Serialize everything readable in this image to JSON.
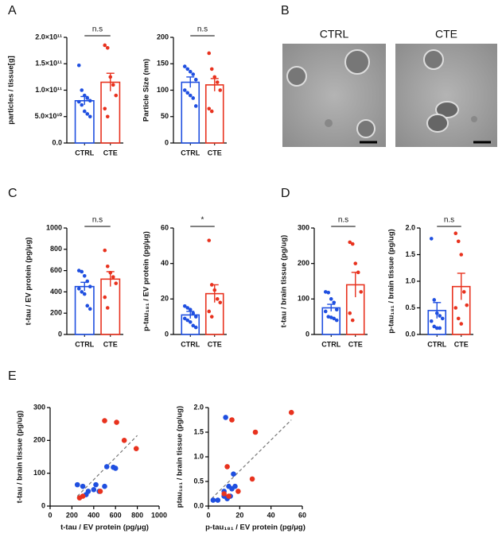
{
  "panel_labels": [
    "A",
    "B",
    "C",
    "D",
    "E"
  ],
  "images": {
    "labels": [
      "CTRL",
      "CTE"
    ]
  },
  "chart_data": [
    {
      "type": "bar",
      "ylabel": "particles / tissue[g]",
      "categories": [
        "CTRL",
        "CTE"
      ],
      "colors": [
        "#1f4fe0",
        "#e8321e"
      ],
      "values": [
        80000000000,
        115000000000
      ],
      "errors": [
        8000000000,
        17000000000
      ],
      "points": [
        [
          147000000000,
          100000000000,
          90000000000,
          85000000000,
          80000000000,
          78000000000,
          72000000000,
          60000000000,
          55000000000,
          50000000000
        ],
        [
          185000000000,
          180000000000,
          125000000000,
          110000000000,
          90000000000,
          65000000000,
          50000000000
        ]
      ],
      "annotation": "n.s",
      "ylim": [
        0,
        200000000000
      ],
      "yticks": [
        {
          "value": 0,
          "label": "0.0"
        },
        {
          "value": 50000000000,
          "label": "5.0×10¹⁰"
        },
        {
          "value": 100000000000,
          "label": "1.0×10¹¹"
        },
        {
          "value": 150000000000,
          "label": "1.5×10¹¹"
        },
        {
          "value": 200000000000,
          "label": "2.0×10¹¹"
        }
      ]
    },
    {
      "type": "bar",
      "ylabel": "Particle Size (nm)",
      "categories": [
        "CTRL",
        "CTE"
      ],
      "colors": [
        "#1f4fe0",
        "#e8321e"
      ],
      "values": [
        115,
        110
      ],
      "errors": [
        10,
        12
      ],
      "points": [
        [
          145,
          140,
          135,
          130,
          120,
          100,
          95,
          90,
          85,
          70
        ],
        [
          170,
          140,
          125,
          115,
          100,
          65,
          60
        ]
      ],
      "annotation": "n.s",
      "ylim": [
        0,
        200
      ],
      "yticks": [
        0,
        50,
        100,
        150,
        200
      ]
    },
    {
      "type": "bar",
      "ylabel": "t-tau / EV protein (pg/μg)",
      "categories": [
        "CTRL",
        "CTE"
      ],
      "colors": [
        "#1f4fe0",
        "#e8321e"
      ],
      "values": [
        450,
        520
      ],
      "errors": [
        40,
        70
      ],
      "points": [
        [
          600,
          590,
          550,
          500,
          450,
          430,
          400,
          380,
          270,
          240
        ],
        [
          790,
          640,
          580,
          540,
          480,
          350,
          250
        ]
      ],
      "annotation": "n.s",
      "ylim": [
        0,
        1000
      ],
      "yticks": [
        0,
        200,
        400,
        600,
        800,
        1000
      ]
    },
    {
      "type": "bar",
      "ylabel": "p-tau₁₈₁ / EV protein (pg/μg)",
      "categories": [
        "CTRL",
        "CTE"
      ],
      "colors": [
        "#1f4fe0",
        "#e8321e"
      ],
      "values": [
        11,
        23
      ],
      "errors": [
        2,
        5
      ],
      "points": [
        [
          16,
          15,
          14,
          12,
          10,
          9,
          8,
          7,
          5,
          4
        ],
        [
          53,
          28,
          25,
          20,
          18,
          13,
          10
        ]
      ],
      "annotation": "*",
      "ylim": [
        0,
        60
      ],
      "yticks": [
        0,
        20,
        40,
        60
      ]
    },
    {
      "type": "bar",
      "ylabel": "t-tau / brain tissue (pg/ug)",
      "categories": [
        "CTRL",
        "CTE"
      ],
      "colors": [
        "#1f4fe0",
        "#e8321e"
      ],
      "values": [
        75,
        140
      ],
      "errors": [
        10,
        35
      ],
      "points": [
        [
          120,
          118,
          100,
          90,
          70,
          65,
          50,
          48,
          45,
          40
        ],
        [
          260,
          255,
          200,
          175,
          120,
          60,
          40
        ]
      ],
      "annotation": "n.s",
      "ylim": [
        0,
        300
      ],
      "yticks": [
        0,
        100,
        200,
        300
      ]
    },
    {
      "type": "bar",
      "ylabel": "p-tau₁₈₁ / brain tissue (pg/ug)",
      "categories": [
        "CTRL",
        "CTE"
      ],
      "colors": [
        "#1f4fe0",
        "#e8321e"
      ],
      "values": [
        0.45,
        0.9
      ],
      "errors": [
        0.15,
        0.25
      ],
      "points": [
        [
          1.8,
          0.65,
          0.4,
          0.35,
          0.3,
          0.25,
          0.15,
          0.12,
          0.12
        ],
        [
          1.9,
          1.75,
          1.5,
          0.8,
          0.55,
          0.5,
          0.3,
          0.2
        ]
      ],
      "annotation": "n.s",
      "ylim": [
        0,
        2
      ],
      "yticks": [
        {
          "value": 0,
          "label": "0.0"
        },
        0.5,
        {
          "value": 1,
          "label": "1.0"
        },
        1.5,
        {
          "value": 2,
          "label": "2.0"
        }
      ]
    },
    {
      "type": "scatter",
      "xlabel": "t-tau / EV protein (pg/μg)",
      "ylabel": "t-tau / brain tissue (pg/ug)",
      "series": [
        {
          "color": "#1f4fe0",
          "x": [
            250,
            300,
            330,
            350,
            400,
            420,
            450,
            500,
            520,
            580,
            600
          ],
          "y": [
            65,
            60,
            35,
            45,
            50,
            65,
            45,
            60,
            120,
            118,
            115
          ]
        },
        {
          "color": "#e8321e",
          "x": [
            270,
            300,
            460,
            500,
            610,
            680,
            790
          ],
          "y": [
            25,
            30,
            45,
            260,
            255,
            200,
            175
          ]
        }
      ],
      "fit": {
        "x": [
          250,
          800
        ],
        "y": [
          30,
          215
        ]
      },
      "xlim": [
        0,
        1000
      ],
      "xticks": [
        0,
        200,
        400,
        600,
        800,
        1000
      ],
      "ylim": [
        0,
        300
      ],
      "yticks": [
        0,
        100,
        200,
        300
      ]
    },
    {
      "type": "scatter",
      "xlabel": "p-tau₁₈₁ / EV protein (pg/μg)",
      "ylabel": "ptau₁₈₁ / brain tissue (pg/ug)",
      "series": [
        {
          "color": "#1f4fe0",
          "x": [
            3,
            6,
            10,
            10,
            11,
            12,
            13,
            14,
            15,
            16,
            17
          ],
          "y": [
            0.12,
            0.12,
            0.3,
            0.2,
            1.8,
            0.15,
            0.4,
            0.2,
            0.35,
            0.65,
            0.4
          ]
        },
        {
          "color": "#e8321e",
          "x": [
            10,
            12,
            13,
            15,
            19,
            28,
            30,
            53
          ],
          "y": [
            0.25,
            0.8,
            0.2,
            1.75,
            0.3,
            0.55,
            1.5,
            1.9
          ]
        }
      ],
      "fit": {
        "x": [
          2,
          53
        ],
        "y": [
          0.15,
          1.75
        ]
      },
      "xlim": [
        0,
        60
      ],
      "xticks": [
        0,
        20,
        40,
        60
      ],
      "ylim": [
        0,
        2
      ],
      "yticks": [
        {
          "value": 0,
          "label": "0.0"
        },
        0.5,
        {
          "value": 1,
          "label": "1.0"
        },
        1.5,
        {
          "value": 2,
          "label": "2.0"
        }
      ]
    }
  ]
}
